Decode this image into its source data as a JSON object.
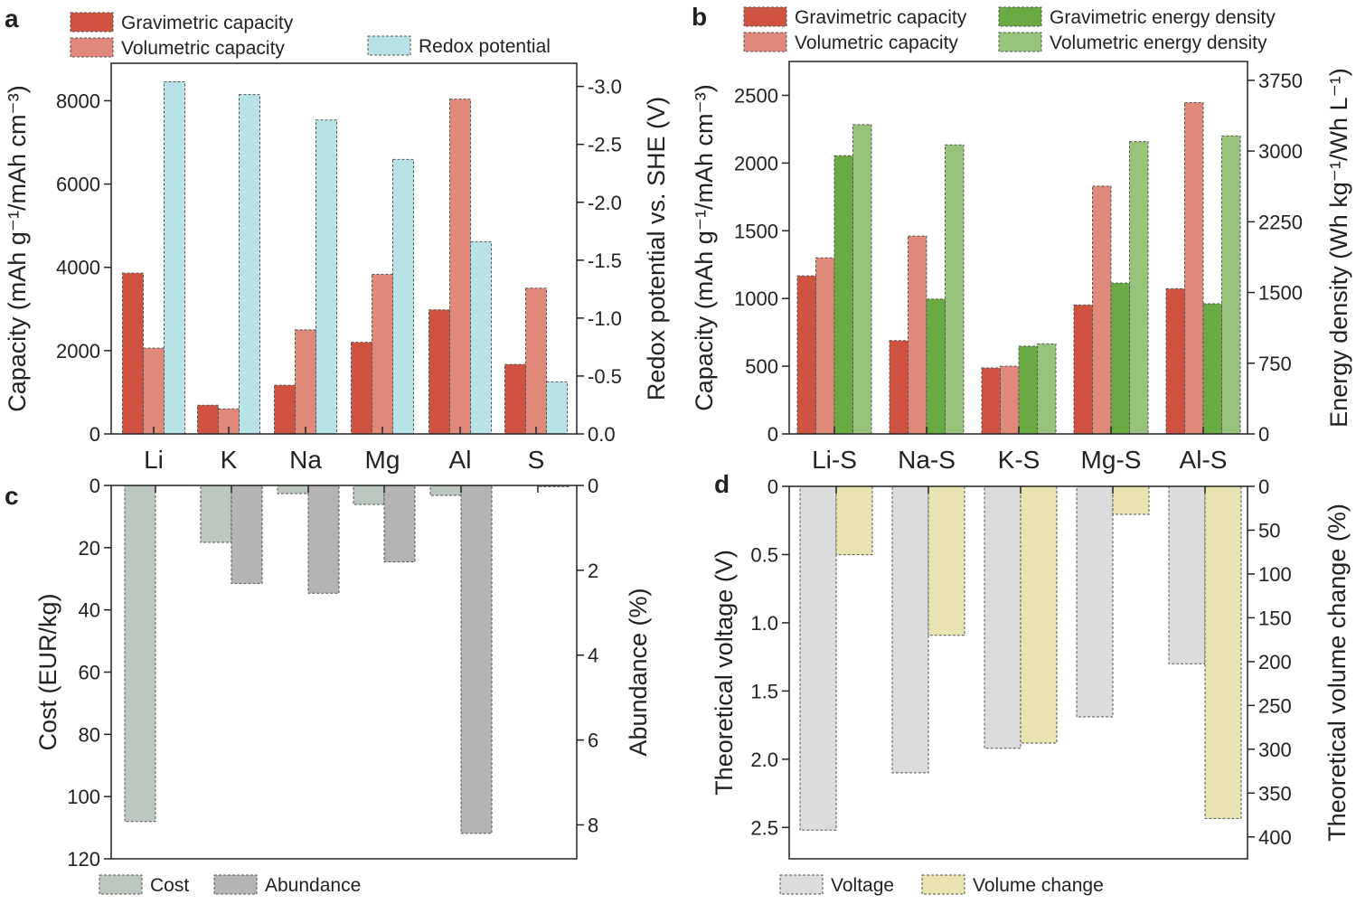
{
  "colors": {
    "gravimetric_capacity": "#cf5340",
    "volumetric_capacity": "#e0887a",
    "redox_potential": "#b8e3e6",
    "gravimetric_energy_density": "#6aaa42",
    "volumetric_energy_density": "#97c47a",
    "cost": "#bcc7c0",
    "abundance": "#b4b4b4",
    "voltage": "#dcdbdd",
    "volume_change": "#e7e4b2"
  },
  "chart_data": [
    {
      "panel": "a",
      "type": "bar",
      "categories": [
        "Li",
        "K",
        "Na",
        "Mg",
        "Al",
        "S"
      ],
      "ylabel": "Capacity (mAh g⁻¹/mAh cm⁻³)",
      "ylabel_right": "Redox potential vs. SHE (V)",
      "ylim": [
        0,
        8900
      ],
      "yticks": [
        0,
        2000,
        4000,
        6000,
        8000
      ],
      "ylim_right": [
        0,
        -3.2
      ],
      "yticks_right": [
        "0.0",
        "-0.5",
        "-1.0",
        "-1.5",
        "-2.0",
        "-2.5",
        "-3.0"
      ],
      "series": [
        {
          "name": "Gravimetric capacity",
          "axis": "left",
          "color_key": "gravimetric_capacity",
          "values": [
            3860,
            690,
            1170,
            2200,
            2980,
            1670
          ]
        },
        {
          "name": "Volumetric capacity",
          "axis": "left",
          "color_key": "volumetric_capacity",
          "values": [
            2060,
            600,
            2500,
            3830,
            8040,
            3500
          ]
        },
        {
          "name": "Redox potential",
          "axis": "right",
          "color_key": "redox_potential",
          "values": [
            -3.04,
            -2.93,
            -2.71,
            -2.37,
            -1.66,
            -0.45
          ]
        }
      ]
    },
    {
      "panel": "b",
      "type": "bar",
      "categories": [
        "Li-S",
        "Na-S",
        "K-S",
        "Mg-S",
        "Al-S"
      ],
      "ylabel": "Capacity (mAh g⁻¹/mAh cm⁻³)",
      "ylabel_right": "Energy density (Wh kg⁻¹/Wh L⁻¹)",
      "ylim": [
        0,
        2750
      ],
      "yticks": [
        0,
        500,
        1000,
        1500,
        2000,
        2500
      ],
      "ylim_right": [
        0,
        3950
      ],
      "yticks_right": [
        0,
        750,
        1500,
        2250,
        3000,
        3750
      ],
      "series": [
        {
          "name": "Gravimetric capacity",
          "axis": "left",
          "color_key": "gravimetric_capacity",
          "values": [
            1167,
            689,
            487,
            952,
            1072
          ]
        },
        {
          "name": "Volumetric capacity",
          "axis": "left",
          "color_key": "volumetric_capacity",
          "values": [
            1300,
            1461,
            500,
            1830,
            2446
          ]
        },
        {
          "name": "Gravimetric energy density",
          "axis": "right",
          "color_key": "gravimetric_energy_density",
          "values": [
            2950,
            1430,
            930,
            1600,
            1380
          ]
        },
        {
          "name": "Volumetric energy density",
          "axis": "right",
          "color_key": "volumetric_energy_density",
          "values": [
            3280,
            3065,
            955,
            3100,
            3160
          ]
        }
      ]
    },
    {
      "panel": "c",
      "type": "bar",
      "categories": [
        "Li",
        "K",
        "Na",
        "Mg",
        "Al",
        "S"
      ],
      "ylabel": "Cost (EUR/kg)",
      "ylabel_right": "Abundance (%)",
      "ylim": [
        0,
        120
      ],
      "yticks": [
        0,
        20,
        40,
        60,
        80,
        100,
        120
      ],
      "ylim_right": [
        0,
        8.8
      ],
      "yticks_right": [
        0,
        2,
        4,
        6,
        8
      ],
      "inverted": true,
      "series": [
        {
          "name": "Cost",
          "axis": "left",
          "color_key": "cost",
          "values": [
            108,
            18.3,
            2.6,
            6.1,
            3.2,
            0
          ]
        },
        {
          "name": "Abundance",
          "axis": "right",
          "color_key": "abundance",
          "values": [
            0.002,
            2.31,
            2.54,
            1.8,
            8.2,
            0.03
          ]
        }
      ]
    },
    {
      "panel": "d",
      "type": "bar",
      "categories": [
        "Li-S",
        "Na-S",
        "K-S",
        "Mg-S",
        "Al-S"
      ],
      "ylabel": "Theoretical voltage (V)",
      "ylabel_right": "Theoretical volume change (%)",
      "ylim": [
        0,
        2.73
      ],
      "yticks": [
        "0",
        "0.5",
        "1.0",
        "1.5",
        "2.0",
        "2.5"
      ],
      "ylim_right": [
        0,
        425
      ],
      "yticks_right": [
        0,
        50,
        100,
        150,
        200,
        250,
        300,
        350,
        400
      ],
      "inverted": true,
      "series": [
        {
          "name": "Voltage",
          "axis": "left",
          "color_key": "voltage",
          "values": [
            2.52,
            2.1,
            1.92,
            1.69,
            1.3
          ]
        },
        {
          "name": "Volume change",
          "axis": "right",
          "color_key": "volume_change",
          "values": [
            78,
            170,
            293,
            32,
            379
          ]
        }
      ]
    }
  ]
}
